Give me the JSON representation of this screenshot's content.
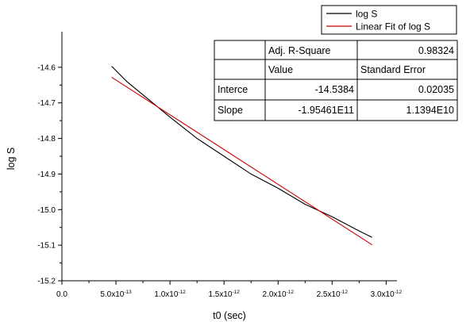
{
  "chart_data": {
    "type": "line",
    "xlabel": "t0 (sec)",
    "ylabel": "log S",
    "xlim": [
      0,
      3.1e-12
    ],
    "ylim": [
      -15.2,
      -14.5
    ],
    "x_ticks": [
      0,
      5e-13,
      1e-12,
      1.5e-12,
      2e-12,
      2.5e-12,
      3e-12
    ],
    "x_tick_labels": [
      {
        "mantissa": "0.0",
        "exp": ""
      },
      {
        "mantissa": "5.0x10",
        "exp": "-13"
      },
      {
        "mantissa": "1.0x10",
        "exp": "-12"
      },
      {
        "mantissa": "1.5x10",
        "exp": "-12"
      },
      {
        "mantissa": "2.0x10",
        "exp": "-12"
      },
      {
        "mantissa": "2.5x10",
        "exp": "-12"
      },
      {
        "mantissa": "3.0x10",
        "exp": "-12"
      }
    ],
    "y_ticks": [
      -14.6,
      -14.7,
      -14.8,
      -14.9,
      -15.0,
      -15.1,
      -15.2
    ],
    "y_tick_labels": [
      "-14.6",
      "-14.7",
      "-14.8",
      "-14.9",
      "-15.0",
      "-15.1",
      "-15.2"
    ],
    "grid": false,
    "legend_position": "top-right",
    "series": [
      {
        "name": "log S",
        "color": "#000000",
        "x": [
          4.6e-13,
          6e-13,
          8e-13,
          1e-12,
          1.25e-12,
          1.5e-12,
          1.75e-12,
          2e-12,
          2.25e-12,
          2.5e-12,
          2.75e-12,
          2.87e-12
        ],
        "y": [
          -14.597,
          -14.64,
          -14.69,
          -14.74,
          -14.8,
          -14.85,
          -14.9,
          -14.94,
          -14.985,
          -15.02,
          -15.06,
          -15.078
        ]
      },
      {
        "name": "Linear Fit of log S",
        "color": "#cc0000",
        "x": [
          4.6e-13,
          2.87e-12
        ],
        "y": [
          -14.628,
          -15.099
        ]
      }
    ],
    "stats_table": {
      "rows": [
        [
          "",
          "Adj. R-Square",
          "0.98324"
        ],
        [
          "",
          "Value",
          "Standard Error"
        ],
        [
          "Interce",
          "-14.5384",
          "0.02035"
        ],
        [
          "Slope",
          "-1.95461E11",
          "1.1394E10"
        ]
      ],
      "align": [
        [
          "left",
          "left",
          "right"
        ],
        [
          "left",
          "left",
          "left"
        ],
        [
          "left",
          "right",
          "right"
        ],
        [
          "left",
          "right",
          "right"
        ]
      ]
    }
  }
}
